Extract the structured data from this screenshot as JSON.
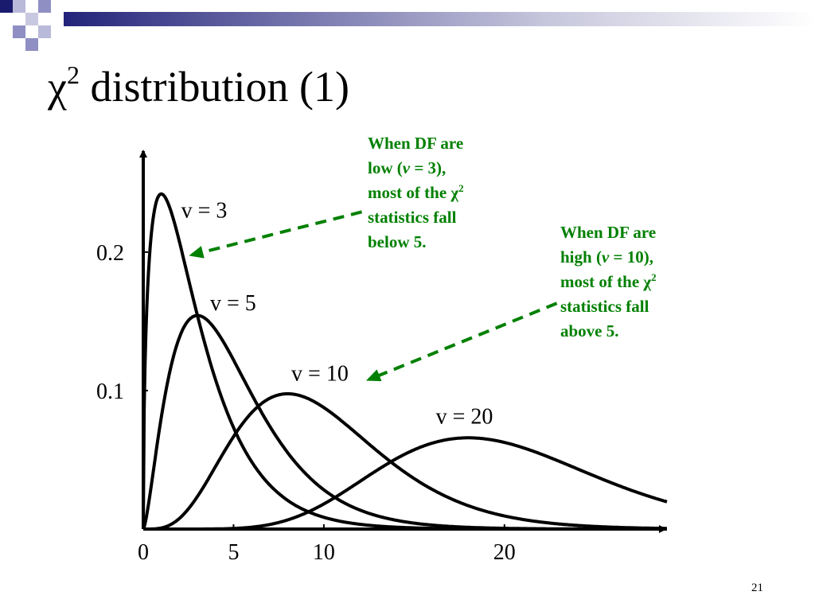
{
  "slide": {
    "title_symbol": "χ",
    "title_superscript": "2",
    "title_text": " distribution (1)",
    "page_number": "21"
  },
  "annotations": [
    {
      "line1": "When DF are",
      "line2_pre": "low (",
      "line2_var": "v",
      "line2_post": " = 3),",
      "line3_pre": "most of the χ",
      "line3_sup": "2",
      "line4": "statistics fall",
      "line5": "below 5."
    },
    {
      "line1": "When DF are",
      "line2_pre": "high (",
      "line2_var": "v",
      "line2_post": " = 10),",
      "line3_pre": "most of the χ",
      "line3_sup": "2",
      "line4": "statistics fall",
      "line5": "above 5."
    }
  ],
  "colors": {
    "annotation": "#008000",
    "curve": "#000000",
    "header_dark": "#23237a",
    "header_light": "#9999cc"
  },
  "chart_data": {
    "type": "line",
    "title": "",
    "xlabel": "",
    "ylabel": "",
    "xlim": [
      0,
      29
    ],
    "ylim": [
      0,
      0.27
    ],
    "x_ticks": [
      {
        "value": 0,
        "label": "0"
      },
      {
        "value": 5,
        "label": "5"
      },
      {
        "value": 10,
        "label": "10"
      },
      {
        "value": 20,
        "label": "20"
      }
    ],
    "y_ticks": [
      {
        "value": 0.1,
        "label": "0.1"
      },
      {
        "value": 0.2,
        "label": "0.2"
      }
    ],
    "series": [
      {
        "name": "v = 3",
        "df": 3,
        "label": "v = 3",
        "label_x": 2.1,
        "label_y": 0.225
      },
      {
        "name": "v = 5",
        "df": 5,
        "label": "v = 5",
        "label_x": 3.7,
        "label_y": 0.158
      },
      {
        "name": "v = 10",
        "df": 10,
        "label": "v = 10",
        "label_x": 8.2,
        "label_y": 0.107
      },
      {
        "name": "v = 20",
        "df": 20,
        "label": "v = 20",
        "label_x": 16.2,
        "label_y": 0.076
      }
    ],
    "arrows": [
      {
        "from_x": 12.1,
        "from_y": 0.229,
        "to_x": 2.7,
        "to_y": 0.198
      },
      {
        "from_x": 22.9,
        "from_y": 0.163,
        "to_x": 12.5,
        "to_y": 0.108
      }
    ],
    "grid": false,
    "legend": "none"
  }
}
